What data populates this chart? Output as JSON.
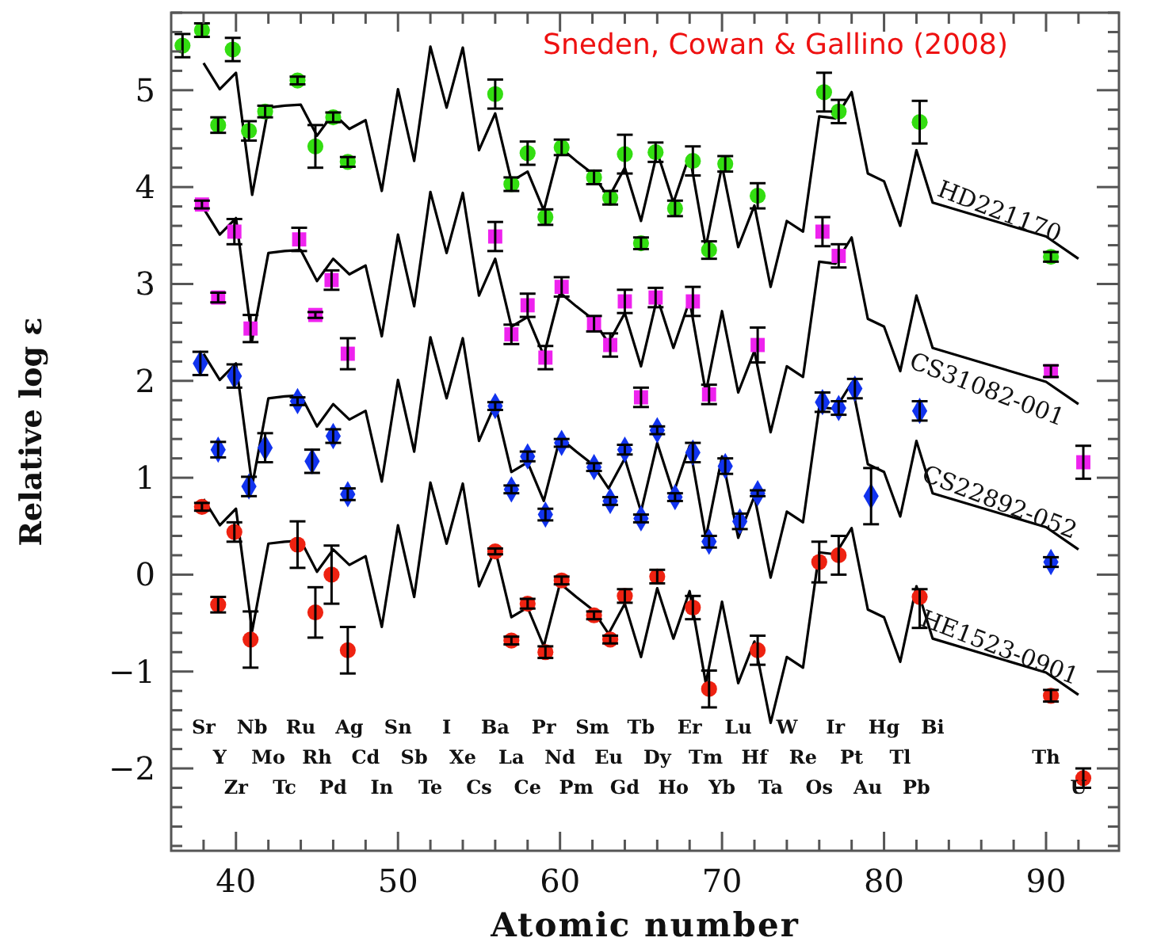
{
  "chart_data": {
    "type": "scatter",
    "xlabel": "Atomic number",
    "ylabel": "Relative log ε",
    "xlim": [
      36,
      94.5
    ],
    "ylim": [
      -2.85,
      5.8
    ],
    "xticks": [
      {
        "value": 38,
        "label": null
      },
      40,
      {
        "value": 42,
        "label": null
      },
      {
        "value": 44,
        "label": null
      },
      {
        "value": 46,
        "label": null
      },
      {
        "value": 48,
        "label": null
      },
      50,
      {
        "value": 52,
        "label": null
      },
      {
        "value": 54,
        "label": null
      },
      {
        "value": 56,
        "label": null
      },
      {
        "value": 58,
        "label": null
      },
      60,
      {
        "value": 62,
        "label": null
      },
      {
        "value": 64,
        "label": null
      },
      {
        "value": 66,
        "label": null
      },
      {
        "value": 68,
        "label": null
      },
      70,
      {
        "value": 72,
        "label": null
      },
      {
        "value": 74,
        "label": null
      },
      {
        "value": 76,
        "label": null
      },
      {
        "value": 78,
        "label": null
      },
      80,
      {
        "value": 82,
        "label": null
      },
      {
        "value": 84,
        "label": null
      },
      {
        "value": 86,
        "label": null
      },
      {
        "value": 88,
        "label": null
      },
      90,
      {
        "value": 92,
        "label": null
      }
    ],
    "yticks": [
      {
        "value": -2,
        "label": "−2"
      },
      {
        "value": -1,
        "label": "−1"
      },
      0,
      1,
      2,
      3,
      4,
      5
    ],
    "grid": false,
    "legend": false,
    "series": [
      {
        "type": "line",
        "name": "HD221170",
        "color": "#000000",
        "marker": "none",
        "x": [
          38,
          39,
          40,
          41,
          42,
          43,
          44,
          45,
          46,
          47,
          48,
          49,
          50,
          51,
          52,
          53,
          54,
          55,
          56,
          57,
          58,
          59,
          60,
          61,
          62,
          63,
          64,
          65,
          66,
          67,
          68,
          69,
          70,
          71,
          72,
          73,
          74,
          75,
          76,
          77,
          78,
          79,
          80,
          81,
          82,
          83,
          90,
          92
        ],
        "values": [
          5.28,
          5.01,
          5.18,
          3.92,
          4.82,
          4.84,
          4.85,
          4.53,
          4.76,
          4.6,
          4.69,
          3.96,
          5.01,
          4.27,
          5.45,
          4.82,
          5.44,
          4.38,
          4.76,
          4.06,
          4.16,
          3.76,
          4.41,
          4.27,
          4.14,
          3.89,
          4.2,
          3.65,
          4.36,
          3.84,
          4.33,
          3.38,
          4.22,
          3.38,
          3.81,
          2.97,
          3.65,
          3.54,
          4.73,
          4.71,
          4.98,
          4.14,
          4.06,
          3.6,
          4.38,
          3.84,
          3.49,
          3.26
        ]
      },
      {
        "type": "line",
        "name": "CS31082-001",
        "color": "#000000",
        "marker": "none",
        "x": [
          38,
          39,
          40,
          41,
          42,
          43,
          44,
          45,
          46,
          47,
          48,
          49,
          50,
          51,
          52,
          53,
          54,
          55,
          56,
          57,
          58,
          59,
          60,
          61,
          62,
          63,
          64,
          65,
          66,
          67,
          68,
          69,
          70,
          71,
          72,
          73,
          74,
          75,
          76,
          77,
          78,
          79,
          80,
          81,
          82,
          83,
          90,
          92
        ],
        "values": [
          3.78,
          3.51,
          3.68,
          2.42,
          3.32,
          3.34,
          3.35,
          3.03,
          3.26,
          3.1,
          3.19,
          2.46,
          3.51,
          2.77,
          3.95,
          3.32,
          3.94,
          2.88,
          3.26,
          2.56,
          2.66,
          2.26,
          2.91,
          2.77,
          2.64,
          2.39,
          2.7,
          2.15,
          2.86,
          2.34,
          2.83,
          1.88,
          2.72,
          1.88,
          2.31,
          1.47,
          2.15,
          2.04,
          3.23,
          3.21,
          3.48,
          2.64,
          2.56,
          2.1,
          2.88,
          2.34,
          1.99,
          1.76
        ]
      },
      {
        "type": "line",
        "name": "CS22892-052",
        "color": "#000000",
        "marker": "none",
        "x": [
          38,
          39,
          40,
          41,
          42,
          43,
          44,
          45,
          46,
          47,
          48,
          49,
          50,
          51,
          52,
          53,
          54,
          55,
          56,
          57,
          58,
          59,
          60,
          61,
          62,
          63,
          64,
          65,
          66,
          67,
          68,
          69,
          70,
          71,
          72,
          73,
          74,
          75,
          76,
          77,
          78,
          79,
          80,
          81,
          82,
          83,
          90,
          92
        ],
        "values": [
          2.28,
          2.01,
          2.18,
          0.92,
          1.82,
          1.84,
          1.85,
          1.53,
          1.76,
          1.6,
          1.69,
          0.96,
          2.01,
          1.27,
          2.45,
          1.82,
          2.44,
          1.38,
          1.76,
          1.06,
          1.16,
          0.76,
          1.41,
          1.27,
          1.14,
          0.89,
          1.2,
          0.65,
          1.36,
          0.84,
          1.33,
          0.38,
          1.22,
          0.38,
          0.81,
          -0.03,
          0.65,
          0.54,
          1.73,
          1.71,
          1.98,
          1.14,
          1.06,
          0.6,
          1.38,
          0.84,
          0.49,
          0.26
        ]
      },
      {
        "type": "line",
        "name": "HE1523-0901",
        "color": "#000000",
        "marker": "none",
        "x": [
          38,
          39,
          40,
          41,
          42,
          43,
          44,
          45,
          46,
          47,
          48,
          49,
          50,
          51,
          52,
          53,
          54,
          55,
          56,
          57,
          58,
          59,
          60,
          61,
          62,
          63,
          64,
          65,
          66,
          67,
          68,
          69,
          70,
          71,
          72,
          73,
          74,
          75,
          76,
          77,
          78,
          79,
          80,
          81,
          82,
          83,
          90,
          92
        ],
        "values": [
          0.78,
          0.51,
          0.68,
          -0.58,
          0.32,
          0.34,
          0.35,
          0.03,
          0.26,
          0.1,
          0.19,
          -0.54,
          0.51,
          -0.23,
          0.95,
          0.32,
          0.94,
          -0.12,
          0.26,
          -0.44,
          -0.34,
          -0.74,
          -0.09,
          -0.23,
          -0.36,
          -0.61,
          -0.3,
          -0.85,
          -0.14,
          -0.66,
          -0.17,
          -1.12,
          -0.28,
          -1.12,
          -0.69,
          -1.53,
          -0.85,
          -0.96,
          0.23,
          0.21,
          0.48,
          -0.36,
          -0.44,
          -0.9,
          -0.12,
          -0.66,
          -1.01,
          -1.24
        ]
      },
      {
        "color": "#33dd11",
        "marker": "circle",
        "x": [
          36.7,
          37.9,
          39.8,
          38.9,
          40.8,
          41.8,
          43.8,
          44.9,
          46,
          46.9,
          56,
          57,
          58,
          59.1,
          60.1,
          62.1,
          63.1,
          64,
          65,
          65.9,
          67.1,
          68.2,
          69.2,
          70.2,
          72.2,
          76.3,
          77.2,
          82.2,
          90.3
        ],
        "values": [
          5.46,
          5.62,
          5.42,
          4.64,
          4.58,
          4.78,
          5.1,
          4.42,
          4.72,
          4.26,
          4.96,
          4.03,
          4.35,
          3.69,
          4.41,
          4.1,
          3.89,
          4.34,
          3.42,
          4.36,
          3.78,
          4.27,
          3.35,
          4.24,
          3.91,
          4.98,
          4.78,
          4.67,
          3.28
        ],
        "errors": [
          0.12,
          0.07,
          0.12,
          0.08,
          0.1,
          0.06,
          0.04,
          0.22,
          0.05,
          0.05,
          0.15,
          0.07,
          0.12,
          0.08,
          0.08,
          0.07,
          0.07,
          0.2,
          0.06,
          0.1,
          0.08,
          0.15,
          0.09,
          0.08,
          0.13,
          0.2,
          0.12,
          0.22,
          0.05
        ]
      },
      {
        "color": "#ee22ee",
        "marker": "square",
        "x": [
          37.9,
          38.9,
          39.9,
          40.9,
          43.9,
          44.9,
          45.9,
          46.9,
          56,
          57,
          58,
          59.1,
          60.1,
          62.1,
          63.1,
          64,
          65,
          65.9,
          68.2,
          69.2,
          72.2,
          76.2,
          77.2,
          90.3,
          92.3
        ],
        "values": [
          3.82,
          2.86,
          3.54,
          2.54,
          3.46,
          2.68,
          3.04,
          2.28,
          3.49,
          2.48,
          2.78,
          2.24,
          2.97,
          2.59,
          2.37,
          2.82,
          1.83,
          2.86,
          2.82,
          1.86,
          2.37,
          3.54,
          3.29,
          2.1,
          1.16
        ],
        "errors": [
          0.04,
          0.05,
          0.13,
          0.14,
          0.12,
          0.03,
          0.1,
          0.16,
          0.15,
          0.1,
          0.12,
          0.12,
          0.1,
          0.08,
          0.12,
          0.12,
          0.1,
          0.1,
          0.15,
          0.1,
          0.18,
          0.15,
          0.12,
          0.06,
          0.17
        ]
      },
      {
        "color": "#1133ee",
        "marker": "diamond",
        "x": [
          37.8,
          38.9,
          39.9,
          40.8,
          41.8,
          43.8,
          44.7,
          46,
          46.9,
          56,
          57,
          58,
          59.1,
          60.1,
          62.1,
          63.1,
          64,
          65,
          66,
          67.1,
          68.2,
          69.2,
          70.2,
          71.1,
          72.2,
          76.2,
          77.2,
          78.2,
          79.2,
          82.2,
          90.3
        ],
        "values": [
          2.18,
          1.29,
          2.05,
          0.91,
          1.31,
          1.79,
          1.17,
          1.43,
          0.83,
          1.74,
          0.88,
          1.22,
          0.62,
          1.36,
          1.11,
          0.76,
          1.29,
          0.58,
          1.49,
          0.8,
          1.26,
          0.34,
          1.12,
          0.55,
          0.84,
          1.78,
          1.72,
          1.92,
          0.81,
          1.69,
          0.13
        ],
        "errors": [
          0.12,
          0.08,
          0.12,
          0.1,
          0.15,
          0.04,
          0.12,
          0.07,
          0.06,
          0.04,
          0.04,
          0.05,
          0.06,
          0.04,
          0.04,
          0.04,
          0.05,
          0.04,
          0.04,
          0.04,
          0.1,
          0.06,
          0.08,
          0.08,
          0.03,
          0.1,
          0.07,
          0.1,
          0.29,
          0.1,
          0.05
        ]
      },
      {
        "color": "#ee2211",
        "marker": "circle",
        "x": [
          37.9,
          38.9,
          39.9,
          40.9,
          43.8,
          44.9,
          45.9,
          46.9,
          56,
          57,
          58,
          59.1,
          60.1,
          62.1,
          63.1,
          64,
          66,
          68.2,
          69.2,
          72.2,
          76,
          77.2,
          82.2,
          90.3,
          92.3
        ],
        "values": [
          0.7,
          -0.31,
          0.44,
          -0.67,
          0.31,
          -0.39,
          0.0,
          -0.78,
          0.24,
          -0.68,
          -0.3,
          -0.8,
          -0.06,
          -0.42,
          -0.67,
          -0.22,
          -0.02,
          -0.34,
          -1.18,
          -0.78,
          0.13,
          0.2,
          -0.23,
          -1.25,
          -2.1
        ],
        "errors": [
          0.04,
          0.08,
          0.1,
          0.29,
          0.24,
          0.26,
          0.3,
          0.24,
          0.03,
          0.04,
          0.05,
          0.06,
          0.04,
          0.04,
          0.04,
          0.07,
          0.07,
          0.12,
          0.19,
          0.15,
          0.21,
          0.2,
          [
            -0.55,
            -0.15
          ],
          0.06,
          0.1
        ]
      }
    ],
    "annotations": [
      "Sneden, Cowan & Gallino (2008)",
      "Sr",
      "Y",
      "Zr",
      "Nb",
      "Mo",
      "Tc",
      "Ru",
      "Rh",
      "Pd",
      "Ag",
      "Cd",
      "In",
      "Sn",
      "Sb",
      "Te",
      "I",
      "Xe",
      "Cs",
      "Ba",
      "La",
      "Ce",
      "Pr",
      "Nd",
      "Pm",
      "Sm",
      "Eu",
      "Gd",
      "Tb",
      "Dy",
      "Ho",
      "Er",
      "Tm",
      "Yb",
      "Lu",
      "Hf",
      "Ta",
      "W",
      "Re",
      "Os",
      "Ir",
      "Pt",
      "Au",
      "Hg",
      "Tl",
      "Pb",
      "Bi",
      "Th",
      "U"
    ]
  }
}
